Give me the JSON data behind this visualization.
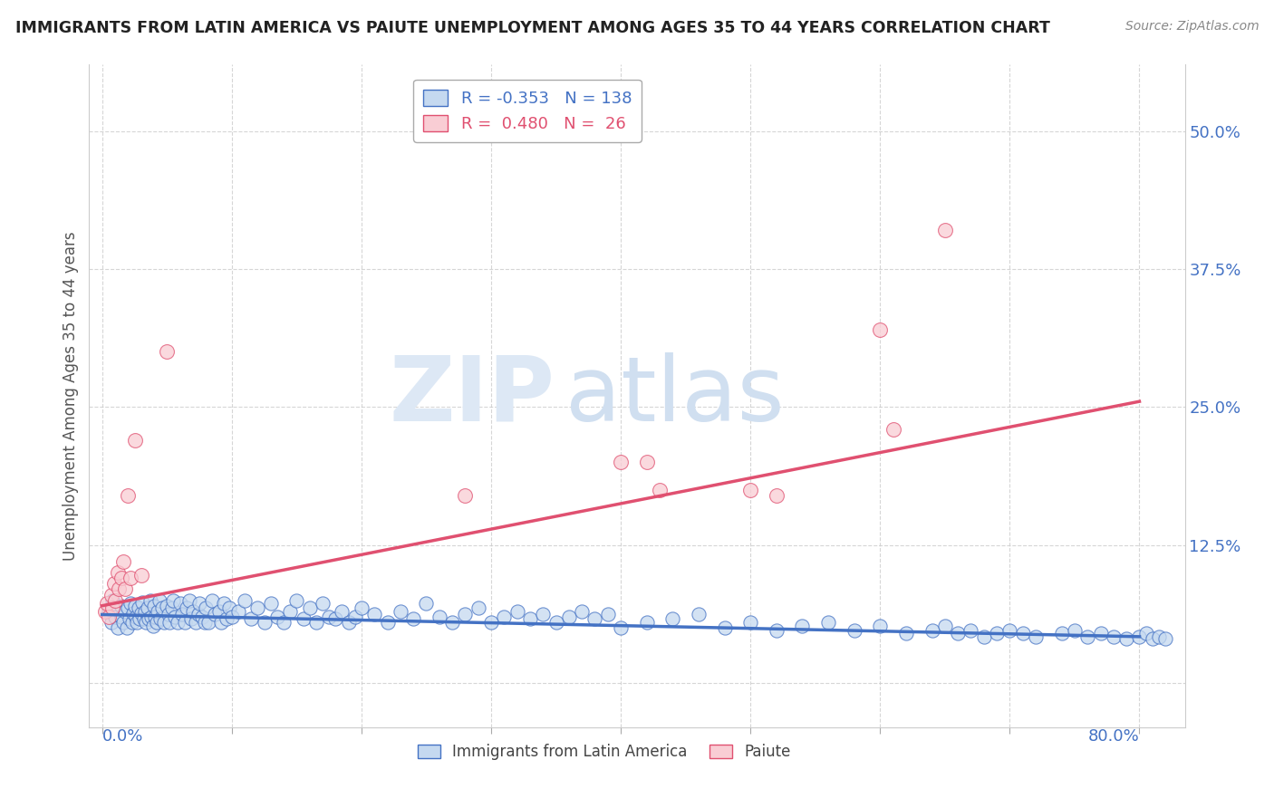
{
  "title": "IMMIGRANTS FROM LATIN AMERICA VS PAIUTE UNEMPLOYMENT AMONG AGES 35 TO 44 YEARS CORRELATION CHART",
  "source": "Source: ZipAtlas.com",
  "ylabel": "Unemployment Among Ages 35 to 44 years",
  "y_ticks": [
    0.0,
    0.125,
    0.25,
    0.375,
    0.5
  ],
  "y_tick_labels": [
    "",
    "12.5%",
    "25.0%",
    "37.5%",
    "50.0%"
  ],
  "x_ticks": [
    0.0,
    0.1,
    0.2,
    0.3,
    0.4,
    0.5,
    0.6,
    0.7,
    0.8
  ],
  "xlim": [
    -0.01,
    0.835
  ],
  "ylim": [
    -0.04,
    0.56
  ],
  "legend_R1": "-0.353",
  "legend_N1": "138",
  "legend_R2": "0.480",
  "legend_N2": "26",
  "color_blue_face": "#c5d9f0",
  "color_blue_edge": "#4472c4",
  "color_pink_face": "#f9cdd4",
  "color_pink_edge": "#e05070",
  "color_blue_line": "#4472c4",
  "color_pink_line": "#e05070",
  "watermark_zip_color": "#dde8f5",
  "watermark_atlas_color": "#d0dff0",
  "blue_trend_x": [
    0.0,
    0.8
  ],
  "blue_trend_y": [
    0.062,
    0.042
  ],
  "pink_trend_x": [
    0.0,
    0.8
  ],
  "pink_trend_y": [
    0.07,
    0.255
  ],
  "blue_scatter_x": [
    0.005,
    0.007,
    0.008,
    0.01,
    0.012,
    0.015,
    0.015,
    0.016,
    0.018,
    0.019,
    0.02,
    0.021,
    0.022,
    0.023,
    0.024,
    0.025,
    0.026,
    0.027,
    0.028,
    0.029,
    0.03,
    0.031,
    0.032,
    0.033,
    0.034,
    0.035,
    0.036,
    0.037,
    0.038,
    0.039,
    0.04,
    0.041,
    0.042,
    0.043,
    0.044,
    0.045,
    0.046,
    0.048,
    0.05,
    0.051,
    0.052,
    0.054,
    0.055,
    0.056,
    0.058,
    0.06,
    0.062,
    0.064,
    0.065,
    0.067,
    0.069,
    0.07,
    0.072,
    0.074,
    0.075,
    0.077,
    0.079,
    0.08,
    0.082,
    0.085,
    0.087,
    0.09,
    0.092,
    0.094,
    0.096,
    0.098,
    0.1,
    0.105,
    0.11,
    0.115,
    0.12,
    0.125,
    0.13,
    0.135,
    0.14,
    0.145,
    0.15,
    0.155,
    0.16,
    0.165,
    0.17,
    0.175,
    0.18,
    0.185,
    0.19,
    0.195,
    0.2,
    0.21,
    0.22,
    0.23,
    0.24,
    0.25,
    0.26,
    0.27,
    0.28,
    0.29,
    0.3,
    0.31,
    0.32,
    0.33,
    0.34,
    0.35,
    0.36,
    0.37,
    0.38,
    0.39,
    0.4,
    0.42,
    0.44,
    0.46,
    0.48,
    0.5,
    0.52,
    0.54,
    0.56,
    0.58,
    0.6,
    0.62,
    0.64,
    0.65,
    0.66,
    0.67,
    0.68,
    0.69,
    0.7,
    0.71,
    0.72,
    0.74,
    0.75,
    0.76,
    0.77,
    0.78,
    0.79,
    0.8,
    0.805,
    0.81,
    0.815,
    0.82
  ],
  "blue_scatter_y": [
    0.065,
    0.055,
    0.075,
    0.06,
    0.05,
    0.07,
    0.06,
    0.055,
    0.065,
    0.05,
    0.068,
    0.058,
    0.072,
    0.055,
    0.063,
    0.07,
    0.06,
    0.055,
    0.068,
    0.058,
    0.063,
    0.073,
    0.058,
    0.065,
    0.055,
    0.068,
    0.058,
    0.075,
    0.06,
    0.052,
    0.07,
    0.06,
    0.055,
    0.065,
    0.075,
    0.058,
    0.068,
    0.055,
    0.07,
    0.062,
    0.055,
    0.068,
    0.075,
    0.06,
    0.055,
    0.072,
    0.062,
    0.055,
    0.068,
    0.075,
    0.058,
    0.065,
    0.055,
    0.062,
    0.072,
    0.06,
    0.055,
    0.068,
    0.055,
    0.075,
    0.062,
    0.065,
    0.055,
    0.072,
    0.058,
    0.068,
    0.06,
    0.065,
    0.075,
    0.058,
    0.068,
    0.055,
    0.072,
    0.06,
    0.055,
    0.065,
    0.075,
    0.058,
    0.068,
    0.055,
    0.072,
    0.06,
    0.058,
    0.065,
    0.055,
    0.06,
    0.068,
    0.062,
    0.055,
    0.065,
    0.058,
    0.072,
    0.06,
    0.055,
    0.062,
    0.068,
    0.055,
    0.06,
    0.065,
    0.058,
    0.062,
    0.055,
    0.06,
    0.065,
    0.058,
    0.062,
    0.05,
    0.055,
    0.058,
    0.062,
    0.05,
    0.055,
    0.048,
    0.052,
    0.055,
    0.048,
    0.052,
    0.045,
    0.048,
    0.052,
    0.045,
    0.048,
    0.042,
    0.045,
    0.048,
    0.045,
    0.042,
    0.045,
    0.048,
    0.042,
    0.045,
    0.042,
    0.04,
    0.042,
    0.045,
    0.04,
    0.042,
    0.04
  ],
  "pink_scatter_x": [
    0.002,
    0.004,
    0.005,
    0.007,
    0.008,
    0.009,
    0.01,
    0.012,
    0.013,
    0.015,
    0.016,
    0.018,
    0.02,
    0.022,
    0.025,
    0.03,
    0.05,
    0.28,
    0.4,
    0.42,
    0.43,
    0.5,
    0.52,
    0.6,
    0.61,
    0.65
  ],
  "pink_scatter_y": [
    0.065,
    0.072,
    0.06,
    0.08,
    0.068,
    0.09,
    0.075,
    0.1,
    0.085,
    0.095,
    0.11,
    0.085,
    0.17,
    0.095,
    0.22,
    0.098,
    0.3,
    0.17,
    0.2,
    0.2,
    0.175,
    0.175,
    0.17,
    0.32,
    0.23,
    0.41
  ]
}
